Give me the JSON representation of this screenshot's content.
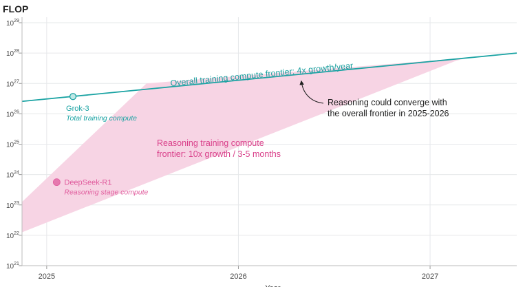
{
  "chart_data": {
    "type": "line",
    "title": "",
    "ylabel": "FLOP",
    "xlabel": "Year",
    "y_scale": "log10",
    "ylim_log10": [
      21,
      29
    ],
    "xlim": [
      "2024-11-15",
      "2027-06-15"
    ],
    "x_ticks": [
      "2025",
      "2026",
      "2027"
    ],
    "x_tick_dates": [
      "2025-01-01",
      "2026-01-01",
      "2027-01-01"
    ],
    "y_ticks_log10": [
      21,
      22,
      23,
      24,
      25,
      26,
      27,
      28,
      29
    ],
    "grid": true,
    "series": [
      {
        "name": "Overall training compute frontier: 4x growth/year",
        "kind": "line",
        "color": "#1aa3a3",
        "points": [
          {
            "x": "2024-11-15",
            "y_log10": 26.41
          },
          {
            "x": "2027-06-15",
            "y_log10": 28.0
          }
        ]
      },
      {
        "name": "Reasoning training compute frontier: 10x growth / 3-5 months",
        "kind": "band",
        "color": "#f7d4e4",
        "upper": [
          {
            "x": "2024-11-15",
            "y_log10": 23.1
          },
          {
            "x": "2025-07-10",
            "y_log10": 27.0
          },
          {
            "x": "2027-03-15",
            "y_log10": 27.85
          }
        ],
        "lower": [
          {
            "x": "2024-11-15",
            "y_log10": 22.1
          },
          {
            "x": "2027-02-20",
            "y_log10": 27.75
          }
        ]
      }
    ],
    "points": [
      {
        "label": "Grok-3",
        "sublabel": "Total training compute",
        "x": "2025-02-20",
        "y_log10": 26.57,
        "color": "#1aa3a3",
        "style": "hollow"
      },
      {
        "label": "DeepSeek-R1",
        "sublabel": "Reasoning stage compute",
        "x": "2025-01-20",
        "y_log10": 23.75,
        "color": "#e05a9c",
        "style": "filled"
      }
    ],
    "annotations": [
      {
        "lines": [
          "Overall training compute frontier: 4x growth/year"
        ],
        "color": "#1a9e9e"
      },
      {
        "lines": [
          "Reasoning training compute",
          "frontier: 10x growth / 3-5 months"
        ],
        "color": "#d9408a"
      },
      {
        "lines": [
          "Reasoning could converge with",
          "the overall frontier in 2025-2026"
        ],
        "color": "#1f1f1f"
      }
    ]
  }
}
